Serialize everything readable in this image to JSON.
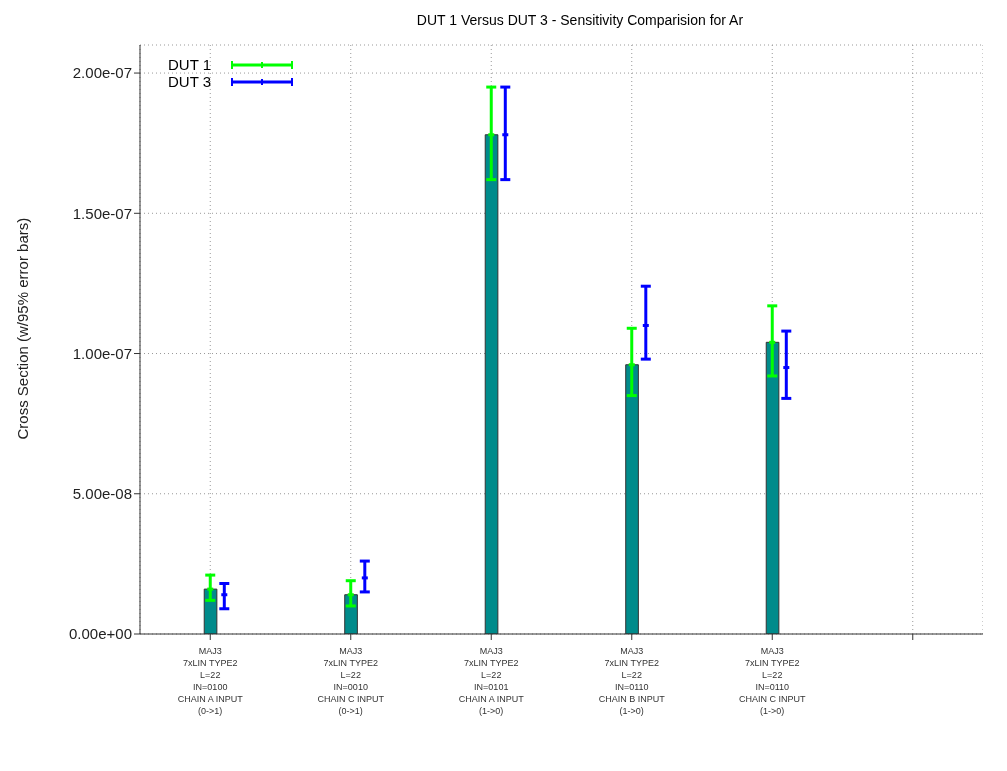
{
  "chart_data": {
    "type": "bar",
    "title": "DUT 1 Versus DUT 3 - Sensitivity Comparision for Ar",
    "ylabel": "Cross Section (w/95% error bars)",
    "categories": [
      "MAJ3\n7xLIN  TYPE2\nL=22\nIN=0100\nCHAIN A INPUT\n(0->1)",
      "MAJ3\n7xLIN  TYPE2\nL=22\nIN=0010\nCHAIN C INPUT\n(0->1)",
      "MAJ3\n7xLIN  TYPE2\nL=22\nIN=0101\nCHAIN A INPUT\n(1->0)",
      "MAJ3\n7xLIN  TYPE2\nL=22\nIN=0110\nCHAIN B INPUT\n(1->0)",
      "MAJ3\n7xLIN  TYPE2\nL=22\nIN=0110\nCHAIN C INPUT\n(1->0)",
      null
    ],
    "series": [
      {
        "color": "#008b8b",
        "values": [
          1.6e-08,
          1.4e-08,
          1.78e-07,
          9.6e-08,
          1.04e-07,
          null
        ]
      },
      {
        "type": "scatter",
        "name": "DUT 1",
        "color": "#00ff00",
        "values": [
          1.6e-08,
          1.4e-08,
          1.78e-07,
          9.6e-08,
          1.04e-07,
          null
        ],
        "errors": [
          [
            1.2e-08,
            2.1e-08
          ],
          [
            1e-08,
            1.9e-08
          ],
          [
            1.62e-07,
            1.95e-07
          ],
          [
            8.5e-08,
            1.09e-07
          ],
          [
            9.2e-08,
            1.17e-07
          ],
          null
        ]
      },
      {
        "type": "scatter",
        "name": "DUT 3",
        "color": "#0000ff",
        "values": [
          1.4e-08,
          2e-08,
          1.78e-07,
          1.1e-07,
          9.5e-08,
          null
        ],
        "errors": [
          [
            9e-09,
            1.8e-08
          ],
          [
            1.5e-08,
            2.6e-08
          ],
          [
            1.62e-07,
            1.95e-07
          ],
          [
            9.8e-08,
            1.24e-07
          ],
          [
            8.4e-08,
            1.08e-07
          ],
          null
        ]
      }
    ],
    "ylim": [
      0,
      2.1e-07
    ],
    "yticks": [
      {
        "value": 0,
        "label": "0.00e+00"
      },
      {
        "value": 5e-08,
        "label": "5.00e-08"
      },
      {
        "value": 1e-07,
        "label": "1.00e-07"
      },
      {
        "value": 1.5e-07,
        "label": "1.50e-07"
      },
      {
        "value": 2e-07,
        "label": "2.00e-07"
      }
    ],
    "grid": true,
    "legend": "top left"
  }
}
